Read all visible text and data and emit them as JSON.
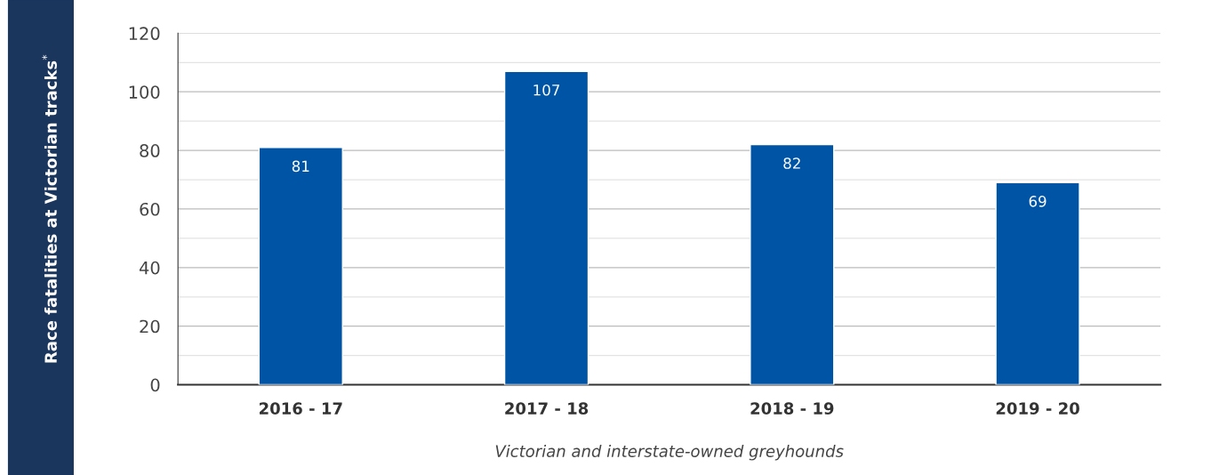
{
  "chart_data": {
    "type": "bar",
    "categories": [
      "2016 - 17",
      "2017 - 18",
      "2018 - 19",
      "2019 - 20"
    ],
    "values": [
      81,
      107,
      82,
      69
    ],
    "color": "#0054a6",
    "ylabel": "Race fatalities at Victorian tracks$^{*}$",
    "xlabel": "Victorian and interstate-owned greyhounds",
    "ylim": [
      0,
      120
    ],
    "yticks": [
      0,
      {
        "value": 10,
        "label": null
      },
      20,
      {
        "value": 30,
        "label": null
      },
      40,
      {
        "value": 50,
        "label": null
      },
      60,
      {
        "value": 70,
        "label": null
      },
      80,
      {
        "value": 90,
        "label": null
      },
      100,
      {
        "value": 110,
        "label": null
      },
      120
    ],
    "grid": "y",
    "data_labels": true
  }
}
